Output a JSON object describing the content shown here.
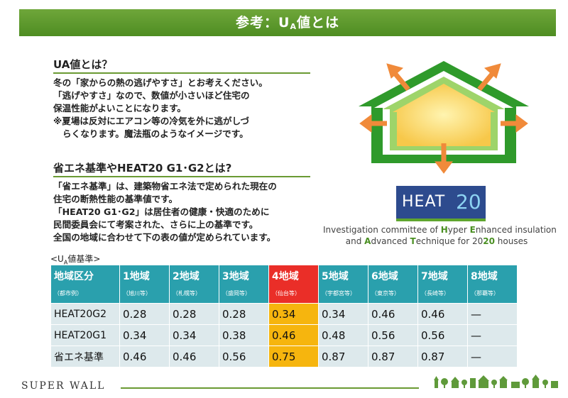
{
  "banner": {
    "prefix": "参考：U",
    "sub": "A",
    "suffix": "値とは"
  },
  "section1": {
    "title": "UA値とは？",
    "lines": [
      "冬の「家からの熱の逃げやすさ」とお考えください。",
      "「逃げやすさ」なので、数値が小さいほど住宅の",
      "保温性能がよいことになります。",
      "※夏場は反対にエアコン等の冷気を外に逃がしづ",
      "らくなります。魔法瓶のようなイメージです。"
    ]
  },
  "section2": {
    "title": "省エネ基準やHEAT20 G1･G2とは?",
    "lines": [
      "「省エネ基準」は、建築物省エネ法で定められた現在の",
      "住宅の断熱性能の基準値です。",
      "「HEAT20 G1･G2」は居住者の健康・快適のために",
      "民間委員会にて考案された、さらに上の基準です。",
      "全国の地域に合わせて下の表の値が定められています。"
    ]
  },
  "logo": {
    "word": "HEAT",
    "num": "20"
  },
  "caption": {
    "line1": [
      {
        "t": "Investigation committee of ",
        "b": false
      },
      {
        "t": "H",
        "b": true
      },
      {
        "t": "yper ",
        "b": false
      },
      {
        "t": "E",
        "b": true
      },
      {
        "t": "nhanced insulation",
        "b": false
      }
    ],
    "line2": [
      {
        "t": "and ",
        "b": false
      },
      {
        "t": "A",
        "b": true
      },
      {
        "t": "dvanced ",
        "b": false
      },
      {
        "t": "T",
        "b": true
      },
      {
        "t": "echnique for 20",
        "b": false
      },
      {
        "t": "20",
        "b": true
      },
      {
        "t": " houses",
        "b": false
      }
    ]
  },
  "table": {
    "title_prefix": "<U",
    "title_sub": "A",
    "title_suffix": "値基準>",
    "headers": [
      {
        "t": "地域区分",
        "s": "（都市例）"
      },
      {
        "t": "1地域",
        "s": "（旭川等）"
      },
      {
        "t": "2地域",
        "s": "（札幌等）"
      },
      {
        "t": "3地域",
        "s": "（盛岡等）"
      },
      {
        "t": "4地域",
        "s": "（仙台等）"
      },
      {
        "t": "5地域",
        "s": "（宇都宮等）"
      },
      {
        "t": "6地域",
        "s": "（東京等）"
      },
      {
        "t": "7地域",
        "s": "（長崎等）"
      },
      {
        "t": "8地域",
        "s": "（那覇等）"
      }
    ],
    "highlight_col": 4,
    "rows": [
      {
        "label": "HEAT20G2",
        "values": [
          "0.28",
          "0.28",
          "0.28",
          "0.34",
          "0.34",
          "0.46",
          "0.46",
          "—"
        ]
      },
      {
        "label": "HEAT20G1",
        "values": [
          "0.34",
          "0.34",
          "0.38",
          "0.46",
          "0.48",
          "0.56",
          "0.56",
          "—"
        ]
      },
      {
        "label": "省エネ基準",
        "values": [
          "0.46",
          "0.46",
          "0.56",
          "0.75",
          "0.87",
          "0.87",
          "0.87",
          "—"
        ]
      }
    ]
  },
  "footer": {
    "brand": "SUPER WALL"
  }
}
